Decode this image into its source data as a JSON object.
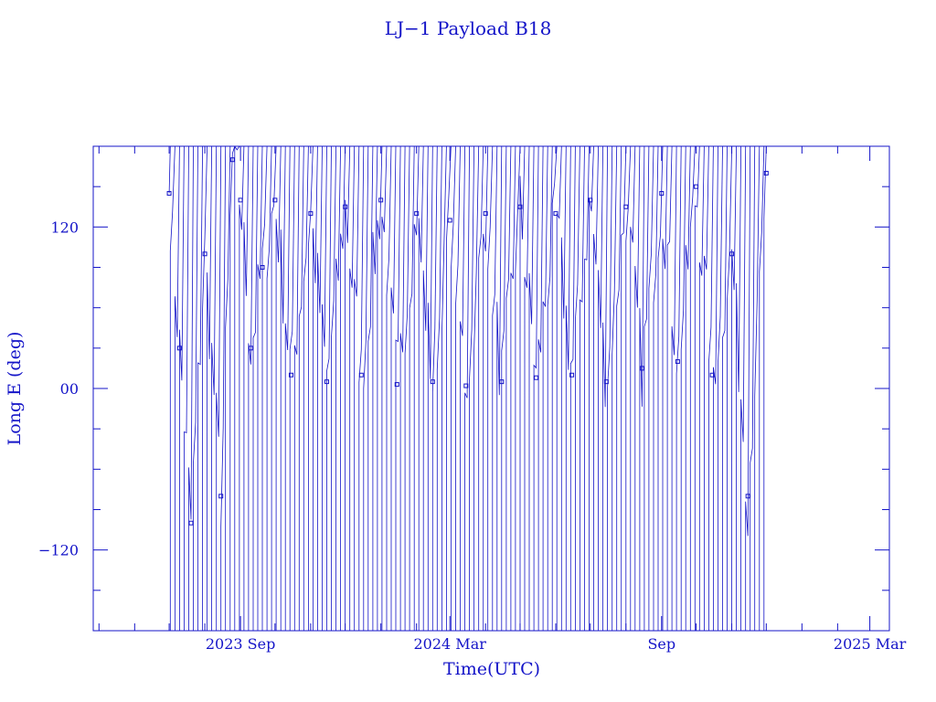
{
  "chart_data": {
    "type": "line",
    "title": "LJ−1 Payload B18",
    "xlabel": "Time(UTC)",
    "ylabel": "Long E (deg)",
    "ylim": [
      -180,
      180
    ],
    "xlim": [
      "2023-04-26",
      "2025-03-18"
    ],
    "y_ticks": [
      {
        "value": 120,
        "label": "120"
      },
      {
        "value": 0,
        "label": "00"
      },
      {
        "value": -120,
        "label": "−120"
      }
    ],
    "x_ticks": [
      {
        "value": "2023-09-01",
        "label": "2023 Sep"
      },
      {
        "value": "2024-03-01",
        "label": "2024 Mar"
      },
      {
        "value": "2024-09-01",
        "label": "Sep"
      },
      {
        "value": "2025-03-01",
        "label": "2025 Mar"
      }
    ],
    "data_start": "2023-07-01",
    "data_end": "2024-12-03",
    "marker": "square",
    "color": "#1414c8",
    "grid": false,
    "series": [
      {
        "values": [
          {
            "x": "2023-07-01",
            "y": 145
          },
          {
            "x": "2023-07-10",
            "y": 30
          },
          {
            "x": "2023-07-20",
            "y": -100
          },
          {
            "x": "2023-08-01",
            "y": 100
          },
          {
            "x": "2023-08-15",
            "y": -80
          },
          {
            "x": "2023-08-25",
            "y": 170
          },
          {
            "x": "2023-09-01",
            "y": 140
          },
          {
            "x": "2023-09-10",
            "y": 30
          },
          {
            "x": "2023-09-20",
            "y": 90
          },
          {
            "x": "2023-10-01",
            "y": 140
          },
          {
            "x": "2023-10-15",
            "y": 10
          },
          {
            "x": "2023-11-01",
            "y": 130
          },
          {
            "x": "2023-11-15",
            "y": 5
          },
          {
            "x": "2023-12-01",
            "y": 135
          },
          {
            "x": "2023-12-15",
            "y": 10
          },
          {
            "x": "2024-01-01",
            "y": 140
          },
          {
            "x": "2024-01-15",
            "y": 3
          },
          {
            "x": "2024-02-01",
            "y": 130
          },
          {
            "x": "2024-02-15",
            "y": 5
          },
          {
            "x": "2024-03-01",
            "y": 125
          },
          {
            "x": "2024-03-15",
            "y": 2
          },
          {
            "x": "2024-04-01",
            "y": 130
          },
          {
            "x": "2024-04-15",
            "y": 5
          },
          {
            "x": "2024-05-01",
            "y": 135
          },
          {
            "x": "2024-05-15",
            "y": 8
          },
          {
            "x": "2024-06-01",
            "y": 130
          },
          {
            "x": "2024-06-15",
            "y": 10
          },
          {
            "x": "2024-07-01",
            "y": 140
          },
          {
            "x": "2024-07-15",
            "y": 5
          },
          {
            "x": "2024-08-01",
            "y": 135
          },
          {
            "x": "2024-08-15",
            "y": 15
          },
          {
            "x": "2024-09-01",
            "y": 145
          },
          {
            "x": "2024-09-15",
            "y": 20
          },
          {
            "x": "2024-10-01",
            "y": 150
          },
          {
            "x": "2024-10-15",
            "y": 10
          },
          {
            "x": "2024-11-01",
            "y": 100
          },
          {
            "x": "2024-11-15",
            "y": -80
          },
          {
            "x": "2024-12-01",
            "y": 160
          }
        ]
      }
    ]
  }
}
